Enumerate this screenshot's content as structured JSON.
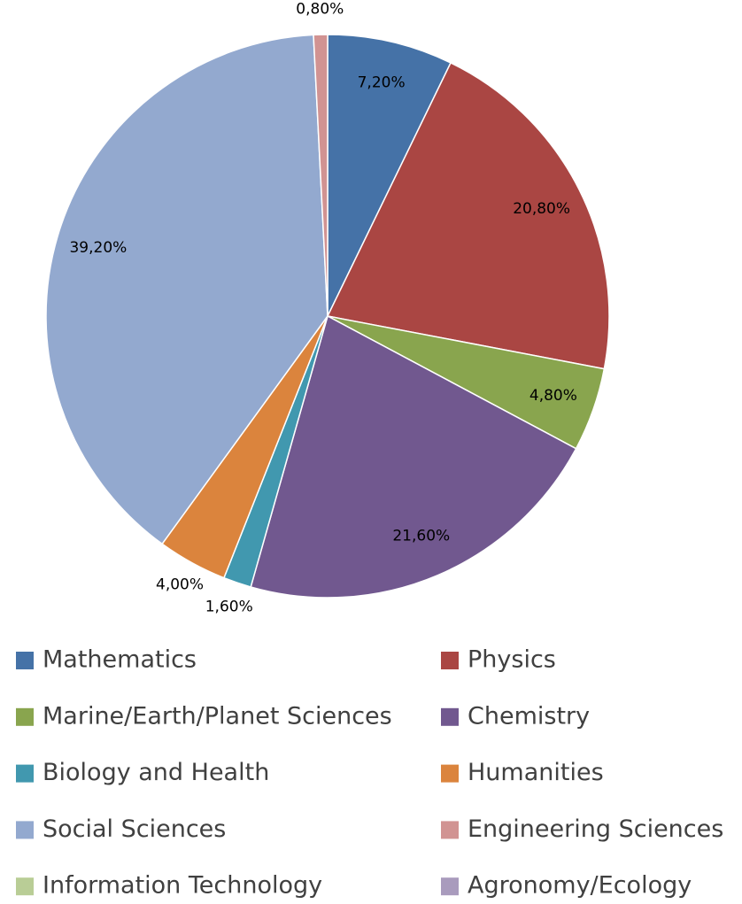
{
  "chart_data": {
    "type": "pie",
    "categories": [
      "Mathematics",
      "Physics",
      "Marine/Earth/Planet Sciences",
      "Chemistry",
      "Biology and Health",
      "Humanities",
      "Social Sciences",
      "Engineering Sciences",
      "Information Technology",
      "Agronomy/Ecology"
    ],
    "values": [
      7.2,
      20.8,
      4.8,
      21.6,
      1.6,
      4.0,
      39.2,
      0.8,
      0,
      0
    ],
    "value_labels": [
      "7,20%",
      "20,80%",
      "4,80%",
      "21,60%",
      "1,60%",
      "4,00%",
      "39,20%",
      "0,80%",
      null,
      null
    ],
    "colors": [
      "#4572a7",
      "#aa4643",
      "#89a54e",
      "#71588f",
      "#4198af",
      "#db843d",
      "#93a9cf",
      "#d19392",
      "#b9cd96",
      "#a99bbd"
    ],
    "legend": "bottom"
  }
}
